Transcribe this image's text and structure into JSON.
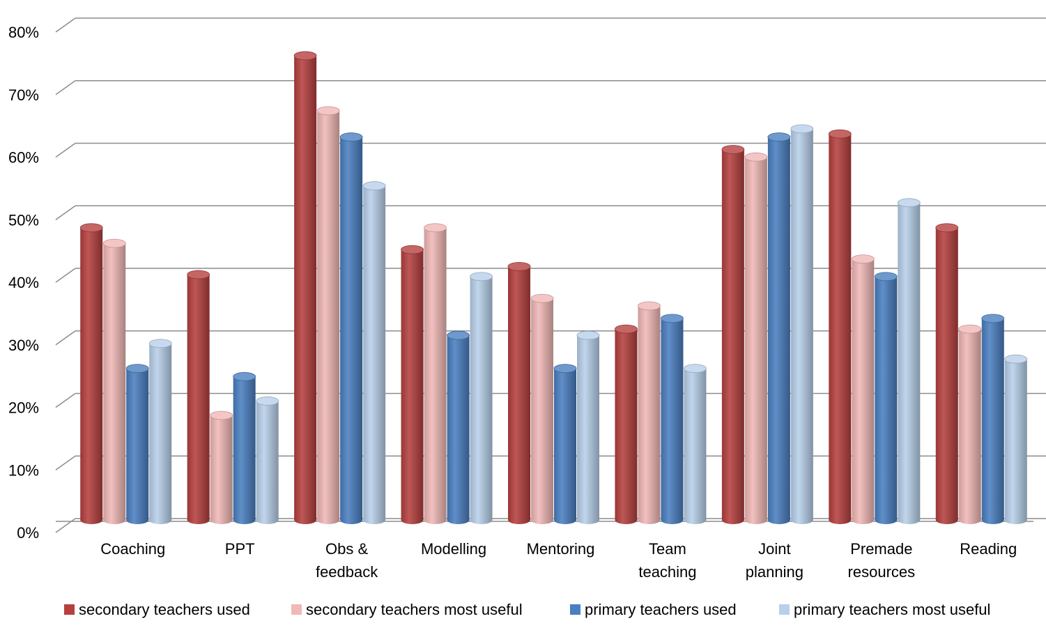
{
  "chart_data": {
    "type": "bar",
    "categories": [
      [
        "Coaching"
      ],
      [
        "PPT"
      ],
      [
        "Obs &",
        "feedback"
      ],
      [
        "Modelling"
      ],
      [
        "Mentoring"
      ],
      [
        "Team",
        "teaching"
      ],
      [
        "Joint",
        "planning"
      ],
      [
        "Premade",
        "resources"
      ],
      [
        "Reading"
      ]
    ],
    "series": [
      {
        "name": "secondary teachers used",
        "color": "#b5403f",
        "values": [
          48.5,
          41,
          76,
          45,
          42.3,
          32.3,
          61,
          63.5,
          48.5
        ]
      },
      {
        "name": "secondary teachers most useful",
        "color": "#f0b8b6",
        "values": [
          46,
          18.5,
          67.2,
          48.5,
          37.2,
          36,
          59.8,
          43.5,
          32.3
        ]
      },
      {
        "name": "primary teachers used",
        "color": "#4a7fc1",
        "values": [
          26,
          24.7,
          63,
          31.3,
          26,
          34,
          63,
          40.7,
          34
        ]
      },
      {
        "name": "primary teachers most useful",
        "color": "#b8d0ea",
        "values": [
          30,
          20.8,
          55.2,
          40.7,
          31.3,
          26,
          64.3,
          52.5,
          27.5
        ]
      }
    ],
    "yticks": [
      "0%",
      "10%",
      "20%",
      "30%",
      "40%",
      "50%",
      "60%",
      "70%",
      "80%"
    ],
    "ylim": [
      0,
      80
    ],
    "grid": true,
    "legend": "bottom"
  }
}
